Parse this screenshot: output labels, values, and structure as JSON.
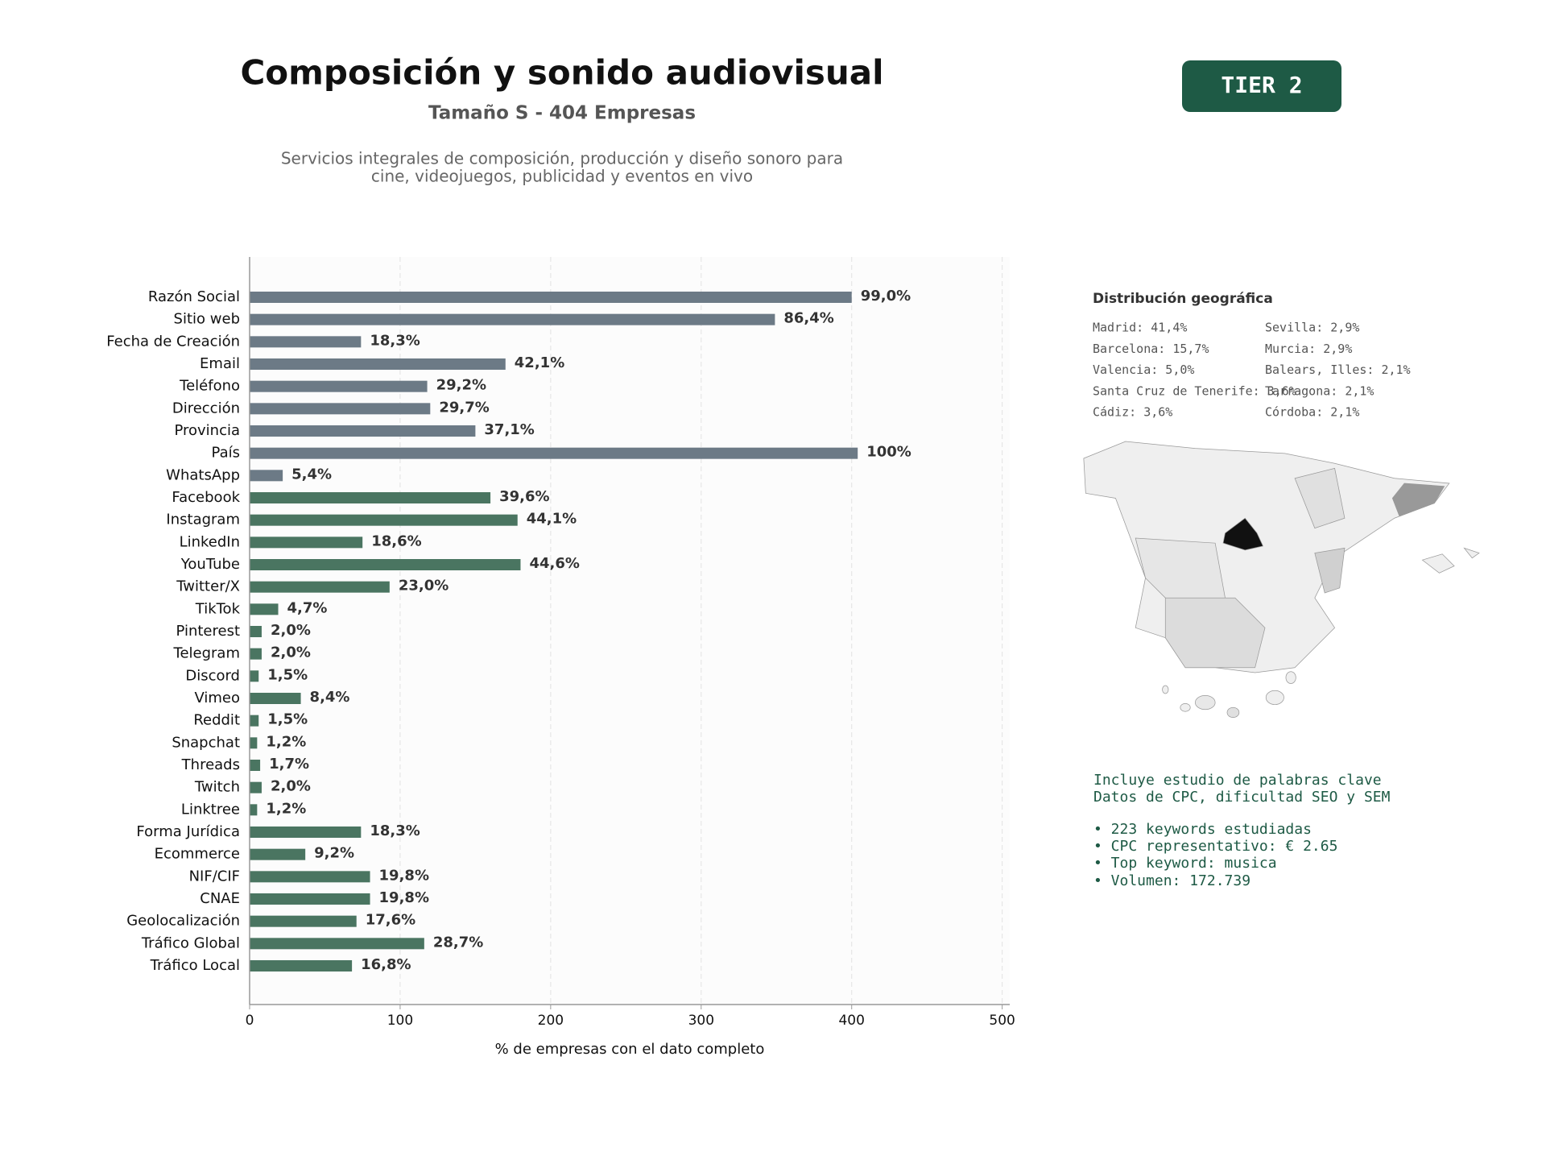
{
  "chart_data": {
    "type": "bar",
    "orientation": "horizontal",
    "title": "Composición y sonido audiovisual",
    "subtitle": "Tamaño S - 404 Empresas",
    "description": [
      "Servicios integrales de composición, producción y diseño sonoro para",
      "cine, videojuegos, publicidad y eventos en vivo"
    ],
    "categories": [
      "Razón Social",
      "Sitio web",
      "Fecha de Creación",
      "Email",
      "Teléfono",
      "Dirección",
      "Provincia",
      "País",
      "WhatsApp",
      "Facebook",
      "Instagram",
      "LinkedIn",
      "YouTube",
      "Twitter/X",
      "TikTok",
      "Pinterest",
      "Telegram",
      "Discord",
      "Vimeo",
      "Reddit",
      "Snapchat",
      "Threads",
      "Twitch",
      "Linktree",
      "Forma Jurídica",
      "Ecommerce",
      "NIF/CIF",
      "CNAE",
      "Geolocalización",
      "Tráfico Global",
      "Tráfico Local"
    ],
    "values": [
      400,
      349,
      74,
      170,
      118,
      120,
      150,
      404,
      22,
      160,
      178,
      75,
      180,
      93,
      19,
      8,
      8,
      6,
      34,
      6,
      5,
      7,
      8,
      5,
      74,
      37,
      80,
      80,
      71,
      116,
      68
    ],
    "value_labels": [
      "99,0%",
      "86,4%",
      "18,3%",
      "42,1%",
      "29,2%",
      "29,7%",
      "37,1%",
      "100%",
      "5,4%",
      "39,6%",
      "44,1%",
      "18,6%",
      "44,6%",
      "23,0%",
      "4,7%",
      "2,0%",
      "2,0%",
      "1,5%",
      "8,4%",
      "1,5%",
      "1,2%",
      "1,7%",
      "2,0%",
      "1,2%",
      "18,3%",
      "9,2%",
      "19,8%",
      "19,8%",
      "17,6%",
      "28,7%",
      "16,8%"
    ],
    "colors": [
      "#6c7a86",
      "#6c7a86",
      "#6c7a86",
      "#6c7a86",
      "#6c7a86",
      "#6c7a86",
      "#6c7a86",
      "#6c7a86",
      "#6c7a86",
      "#4a7561",
      "#4a7561",
      "#4a7561",
      "#4a7561",
      "#4a7561",
      "#4a7561",
      "#4a7561",
      "#4a7561",
      "#4a7561",
      "#4a7561",
      "#4a7561",
      "#4a7561",
      "#4a7561",
      "#4a7561",
      "#4a7561",
      "#4a7561",
      "#4a7561",
      "#4a7561",
      "#4a7561",
      "#4a7561",
      "#4a7561",
      "#4a7561"
    ],
    "xlim": [
      0,
      505
    ],
    "xticks": [
      0,
      100,
      200,
      300,
      400,
      500
    ],
    "xlabel": "% de empresas con el dato completo",
    "grid": true
  },
  "badge": "TIER 2",
  "geo_panel": {
    "title": "Distribución geográfica",
    "items": [
      "Madrid: 41,4%",
      "Barcelona: 15,7%",
      "Valencia: 5,0%",
      "Santa Cruz de Tenerife: 3,6%",
      "Cádiz: 3,6%",
      "Sevilla: 2,9%",
      "Murcia: 2,9%",
      "Balears, Illes: 2,1%",
      "Tarragona: 2,1%",
      "Córdoba: 2,1%"
    ]
  },
  "keywords": {
    "lines": [
      "Incluye estudio de palabras clave",
      "Datos de CPC, dificultad SEO y SEM",
      "• 223 keywords estudiadas",
      "• CPC representativo: € 2.65",
      "• Top keyword: musica",
      "• Volumen: 172.739"
    ]
  }
}
